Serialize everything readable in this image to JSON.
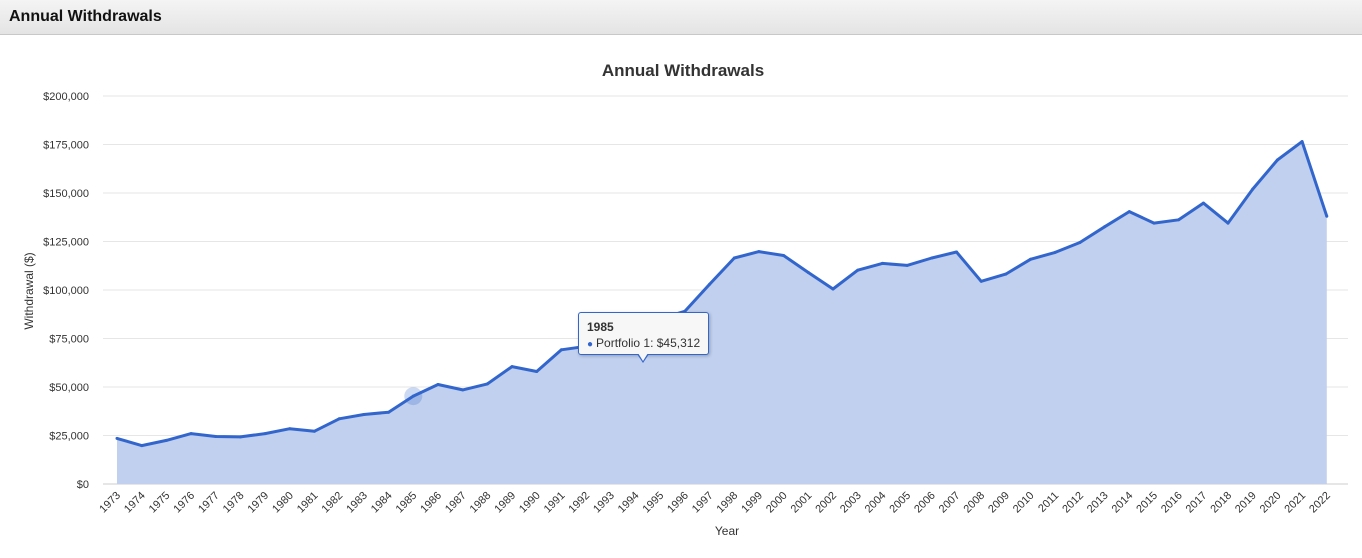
{
  "panel": {
    "title": "Annual Withdrawals"
  },
  "tooltip": {
    "year": "1985",
    "series": "Portfolio 1",
    "value": "$45,312",
    "row": "Portfolio 1: $45,312"
  },
  "colors": {
    "line": "#3366cc",
    "area": "#c0d0ee",
    "grid": "#e6e6e6"
  },
  "chart_data": {
    "type": "area",
    "title": "Annual Withdrawals",
    "xlabel": "Year",
    "ylabel": "Withdrawal ($)",
    "ylim": [
      0,
      200000
    ],
    "yticks": [
      0,
      25000,
      50000,
      75000,
      100000,
      125000,
      150000,
      175000,
      200000
    ],
    "ytick_labels": [
      "$0",
      "$25,000",
      "$50,000",
      "$75,000",
      "$100,000",
      "$125,000",
      "$150,000",
      "$175,000",
      "$200,000"
    ],
    "grid": true,
    "categories": [
      "1973",
      "1974",
      "1975",
      "1976",
      "1977",
      "1978",
      "1979",
      "1980",
      "1981",
      "1982",
      "1983",
      "1984",
      "1985",
      "1986",
      "1987",
      "1988",
      "1989",
      "1990",
      "1991",
      "1992",
      "1993",
      "1994",
      "1995",
      "1996",
      "1997",
      "1998",
      "1999",
      "2000",
      "2001",
      "2002",
      "2003",
      "2004",
      "2005",
      "2006",
      "2007",
      "2008",
      "2009",
      "2010",
      "2011",
      "2012",
      "2013",
      "2014",
      "2015",
      "2016",
      "2017",
      "2018",
      "2019",
      "2020",
      "2021",
      "2022"
    ],
    "series": [
      {
        "name": "Portfolio 1",
        "values": [
          23500,
          19800,
          22500,
          26000,
          24500,
          24300,
          26000,
          28500,
          27200,
          33600,
          35800,
          37000,
          45312,
          51300,
          48500,
          51600,
          60500,
          58000,
          69200,
          71000,
          72000,
          73000,
          85200,
          89000,
          103000,
          116500,
          119800,
          117800,
          109000,
          100500,
          110200,
          113700,
          112700,
          116500,
          119600,
          104500,
          108200,
          115800,
          119400,
          124500,
          132600,
          140400,
          134500,
          136200,
          144800,
          134500,
          152000,
          167000,
          176500,
          138000
        ]
      }
    ]
  }
}
